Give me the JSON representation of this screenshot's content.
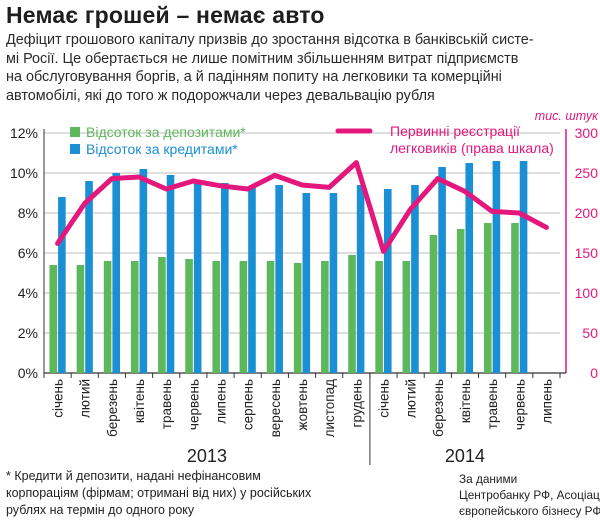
{
  "header": {
    "title": "Немає грошей – немає авто",
    "subtitle_lines": [
      "Дефіцит грошового капіталу призвів до зростання відсотка в банківській систе-",
      "мі Росії. Це обертається не лише помітним збільшенням витрат підприємств",
      "на обслуговування боргів, а й падінням попиту на легковики та комерційні",
      "автомобілі, які до того ж подорожчали через девальвацію рубля"
    ]
  },
  "colors": {
    "deposit": "#5db85b",
    "credit": "#1b8fd4",
    "registrations": "#e4177c",
    "grid": "#bdbdbd",
    "axis": "#333333"
  },
  "chart_data": {
    "type": "bar",
    "categories": [
      "січень",
      "лютий",
      "березень",
      "квітень",
      "травень",
      "червень",
      "липень",
      "серпень",
      "вересень",
      "жовтень",
      "листопад",
      "грудень",
      "січень",
      "лютий",
      "березень",
      "квітень",
      "травень",
      "червень",
      "липень"
    ],
    "year_labels": [
      {
        "label": "2013",
        "start": 0,
        "end": 11
      },
      {
        "label": "2014",
        "start": 12,
        "end": 18
      }
    ],
    "left_axis": {
      "ylim": [
        0,
        12
      ],
      "ticks": [
        "0%",
        "2%",
        "4%",
        "6%",
        "8%",
        "10%",
        "12%"
      ]
    },
    "right_axis": {
      "unit": "тис. штук",
      "ylim": [
        0,
        300
      ],
      "ticks": [
        "0",
        "50",
        "100",
        "150",
        "200",
        "250",
        "300"
      ]
    },
    "series": [
      {
        "name": "Відсоток за депозитами*",
        "type": "bar",
        "axis": "left",
        "values": [
          5.4,
          5.4,
          5.6,
          5.6,
          5.8,
          5.7,
          5.6,
          5.6,
          5.6,
          5.5,
          5.6,
          5.9,
          5.6,
          5.6,
          6.9,
          7.2,
          7.5,
          7.5,
          null
        ]
      },
      {
        "name": "Відсоток за кредитами*",
        "type": "bar",
        "axis": "left",
        "values": [
          8.8,
          9.6,
          10.0,
          10.2,
          9.9,
          9.6,
          9.5,
          9.3,
          9.4,
          9.0,
          9.0,
          9.4,
          9.2,
          9.4,
          10.3,
          10.5,
          10.6,
          10.6,
          null
        ]
      },
      {
        "name": "Первинні реєстрації легковиків (права шкала)",
        "type": "line",
        "axis": "right",
        "values": [
          162,
          212,
          243,
          245,
          230,
          240,
          234,
          230,
          247,
          235,
          232,
          263,
          152,
          205,
          243,
          227,
          202,
          200,
          182
        ]
      }
    ],
    "legend": "top"
  },
  "footnote": [
    "* Кредити й депозити, надані нефінансовим",
    "корпораціям (фірмам; отримані від них) у російських",
    "рублях на термін до одного року"
  ],
  "source": [
    "За даними",
    "Центробанку РФ, Асоціації",
    "європейського бізнесу РФ"
  ]
}
